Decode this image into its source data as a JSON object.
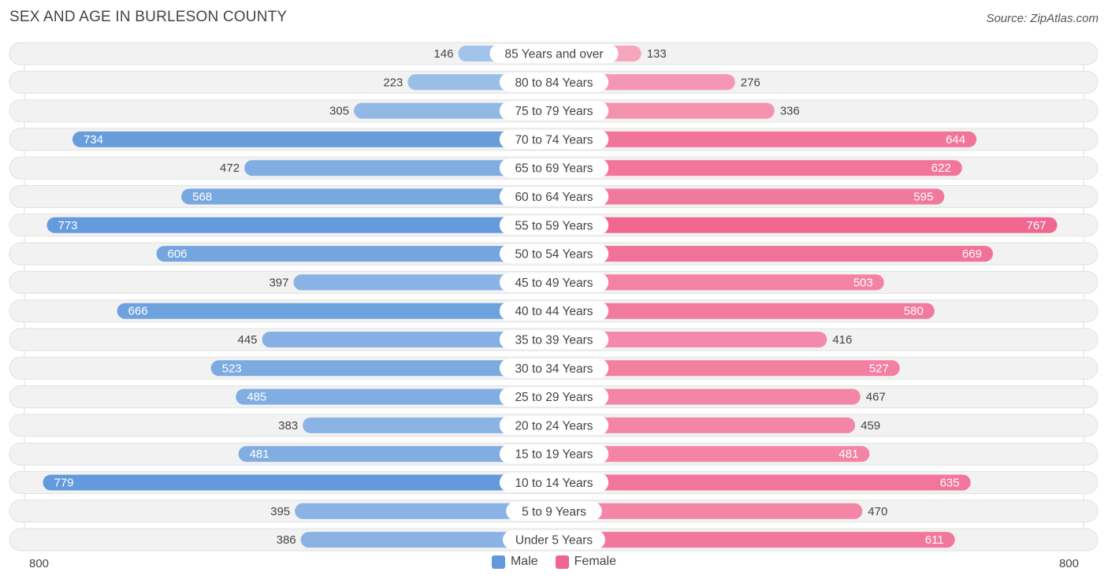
{
  "title": "SEX AND AGE IN BURLESON COUNTY",
  "source": "Source: ZipAtlas.com",
  "chart_data": {
    "type": "bar",
    "orientation": "horizontal-diverging",
    "categories": [
      "85 Years and over",
      "80 to 84 Years",
      "75 to 79 Years",
      "70 to 74 Years",
      "65 to 69 Years",
      "60 to 64 Years",
      "55 to 59 Years",
      "50 to 54 Years",
      "45 to 49 Years",
      "40 to 44 Years",
      "35 to 39 Years",
      "30 to 34 Years",
      "25 to 29 Years",
      "20 to 24 Years",
      "15 to 19 Years",
      "10 to 14 Years",
      "5 to 9 Years",
      "Under 5 Years"
    ],
    "series": [
      {
        "name": "Male",
        "color": "#6199db",
        "values": [
          146,
          223,
          305,
          734,
          472,
          568,
          773,
          606,
          397,
          666,
          445,
          523,
          485,
          383,
          481,
          779,
          395,
          386
        ]
      },
      {
        "name": "Female",
        "color": "#f06590",
        "values": [
          133,
          276,
          336,
          644,
          622,
          595,
          767,
          669,
          503,
          580,
          416,
          527,
          467,
          459,
          481,
          635,
          470,
          611
        ]
      }
    ],
    "xlim": [
      -800,
      800
    ],
    "axis_min_label": "800",
    "axis_max_label": "800",
    "legend_position": "bottom-center"
  }
}
